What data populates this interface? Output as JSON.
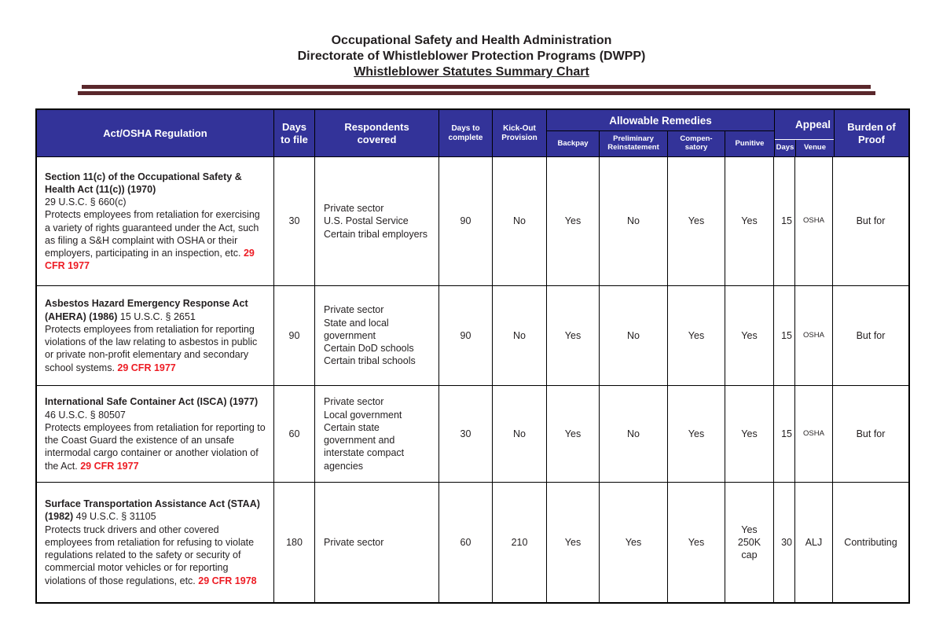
{
  "title": {
    "line1": "Occupational Safety and Health Administration",
    "line2": "Directorate of Whistleblower Protection Programs (DWPP)",
    "line3": "Whistleblower Statutes Summary Chart"
  },
  "colors": {
    "header_background": "#333399",
    "rule_maroon": "#5a272b",
    "cfr_red": "#ed1c24",
    "border_black": "#000000"
  },
  "table": {
    "headers": {
      "act": "Act/OSHA Regulation",
      "days_to_file": "Days\nto file",
      "respondents": "Respondents\ncovered",
      "days_to_complete": "Days to\ncomplete",
      "kick_out": "Kick-Out\nProvision",
      "allowable_remedies": "Allowable Remedies",
      "backpay": "Backpay",
      "preliminary_reinstatement": "Preliminary\nReinstatement",
      "compensatory": "Compen-\nsatory",
      "punitive": "Punitive",
      "appeal": "Appeal",
      "appeal_days": "Days",
      "appeal_venue": "Venue",
      "burden_of_proof": "Burden of\nProof"
    },
    "rows": [
      {
        "act_name": "Section 11(c) of the Occupational Safety & Health Act (11(c)) (1970)",
        "act_cite": "29 U.S.C. § 660(c)",
        "act_desc": "Protects employees from retaliation for exercising a variety of rights guaranteed under the Act, such as filing a S&H complaint with OSHA or their employers, participating in an inspection, etc.",
        "act_cfr": "29 CFR 1977",
        "days_to_file": "30",
        "respondents": "Private sector\nU.S. Postal Service\nCertain tribal employers",
        "days_to_complete": "90",
        "kick_out": "No",
        "backpay": "Yes",
        "preliminary_reinstatement": "No",
        "compensatory": "Yes",
        "punitive": "Yes",
        "appeal_days": "15",
        "appeal_venue": "OSHA",
        "burden_of_proof": "But for"
      },
      {
        "act_name": "Asbestos Hazard Emergency Response Act (AHERA) (1986)",
        "act_cite": "15 U.S.C. § 2651",
        "act_desc": "Protects employees from retaliation for reporting violations of the law relating to asbestos in public or private non-profit elementary and secondary school systems.",
        "act_cfr": "29 CFR 1977",
        "days_to_file": "90",
        "respondents": "Private sector\nState and local government\nCertain DoD schools\nCertain tribal schools",
        "days_to_complete": "90",
        "kick_out": "No",
        "backpay": "Yes",
        "preliminary_reinstatement": "No",
        "compensatory": "Yes",
        "punitive": "Yes",
        "appeal_days": "15",
        "appeal_venue": "OSHA",
        "burden_of_proof": "But for"
      },
      {
        "act_name": "International Safe Container Act (ISCA) (1977)",
        "act_cite": "46 U.S.C. § 80507",
        "act_desc": "Protects employees from retaliation for reporting to the Coast Guard the existence of an unsafe intermodal cargo container or another violation of the Act.",
        "act_cfr": "29 CFR 1977",
        "days_to_file": "60",
        "respondents": "Private sector\nLocal government\nCertain state government and interstate compact agencies",
        "days_to_complete": "30",
        "kick_out": "No",
        "backpay": "Yes",
        "preliminary_reinstatement": "No",
        "compensatory": "Yes",
        "punitive": "Yes",
        "appeal_days": "15",
        "appeal_venue": "OSHA",
        "burden_of_proof": "But for"
      },
      {
        "act_name": "Surface Transportation Assistance Act (STAA) (1982)",
        "act_cite": "49 U.S.C. § 31105",
        "act_desc": "Protects truck drivers and other covered employees from retaliation for refusing to violate regulations related to the safety or security of commercial motor vehicles or for reporting violations of those regulations, etc.",
        "act_cfr": "29 CFR 1978",
        "days_to_file": "180",
        "respondents": "Private sector",
        "days_to_complete": "60",
        "kick_out": "210",
        "backpay": "Yes",
        "preliminary_reinstatement": "Yes",
        "compensatory": "Yes",
        "punitive": "Yes\n250K\ncap",
        "appeal_days": "30",
        "appeal_venue": "ALJ",
        "burden_of_proof": "Contributing"
      }
    ]
  }
}
